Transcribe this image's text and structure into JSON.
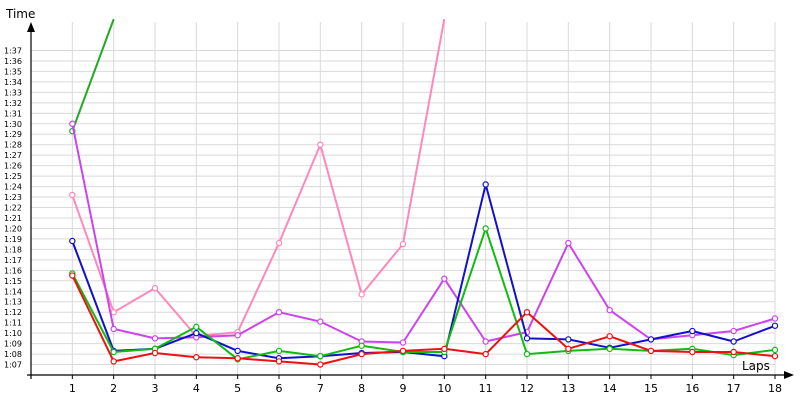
{
  "chart_data": {
    "type": "line",
    "xlabel": "Laps",
    "ylabel": "Time",
    "x": [
      1,
      2,
      3,
      4,
      5,
      6,
      7,
      8,
      9,
      10,
      11,
      12,
      13,
      14,
      15,
      16,
      17,
      18
    ],
    "xlim": [
      0,
      18
    ],
    "ylim": [
      "1:06",
      "1:38"
    ],
    "y_ticks": [
      "1:07",
      "1:08",
      "1:09",
      "1:10",
      "1:11",
      "1:12",
      "1:13",
      "1:14",
      "1:15",
      "1:16",
      "1:17",
      "1:18",
      "1:19",
      "1:20",
      "1:21",
      "1:22",
      "1:23",
      "1:24",
      "1:25",
      "1:26",
      "1:27",
      "1:28",
      "1:29",
      "1:30",
      "1:31",
      "1:32",
      "1:33",
      "1:34",
      "1:35",
      "1:36",
      "1:37"
    ],
    "grid": true,
    "series": [
      {
        "color": "#22aa22",
        "values": [
          "1:29.3",
          "1:40.0",
          null,
          null,
          null,
          null,
          null,
          null,
          null,
          null,
          null,
          null,
          null,
          null,
          null,
          null,
          null,
          null
        ]
      },
      {
        "color": "#ff88bb",
        "values": [
          "1:23.2",
          "1:12.0",
          "1:14.3",
          "1:09.7",
          "1:10.1",
          "1:18.6",
          "1:28.0",
          "1:13.7",
          "1:18.5",
          "1:40.0",
          null,
          null,
          null,
          null,
          null,
          null,
          null,
          null
        ]
      },
      {
        "color": "#cc44ee",
        "values": [
          "1:30.0",
          "1:10.4",
          "1:09.5",
          "1:09.6",
          "1:09.8",
          "1:12.0",
          "1:11.1",
          "1:09.2",
          "1:09.1",
          "1:15.2",
          "1:09.2",
          "1:10.1",
          "1:18.6",
          "1:12.2",
          "1:09.4",
          "1:09.8",
          "1:10.2",
          "1:11.4"
        ]
      },
      {
        "color": "#1111cc",
        "values": [
          "1:18.8",
          "1:08.3",
          "1:08.5",
          "1:10.0",
          "1:08.3",
          "1:07.6",
          "1:07.8",
          "1:08.1",
          "1:08.2",
          "1:07.8",
          "1:24.2",
          "1:09.5",
          "1:09.4",
          "1:08.6",
          "1:09.4",
          "1:10.2",
          "1:09.2",
          "1:10.7"
        ]
      },
      {
        "color": "#11bb11",
        "values": [
          "1:15.7",
          "1:08.2",
          "1:08.5",
          "1:10.6",
          "1:07.5",
          "1:08.3",
          "1:07.8",
          "1:08.8",
          "1:08.2",
          "1:08.2",
          "1:20.0",
          "1:08.0",
          "1:08.3",
          "1:08.5",
          "1:08.3",
          "1:08.5",
          "1:07.9",
          "1:08.4"
        ]
      },
      {
        "color": "#ee1111",
        "values": [
          "1:15.5",
          "1:07.3",
          "1:08.1",
          "1:07.7",
          "1:07.6",
          "1:07.3",
          "1:07.0",
          "1:08.0",
          "1:08.3",
          "1:08.5",
          "1:08.0",
          "1:12.0",
          "1:08.5",
          "1:09.7",
          "1:08.3",
          "1:08.2",
          "1:08.2",
          "1:07.8"
        ]
      }
    ]
  }
}
